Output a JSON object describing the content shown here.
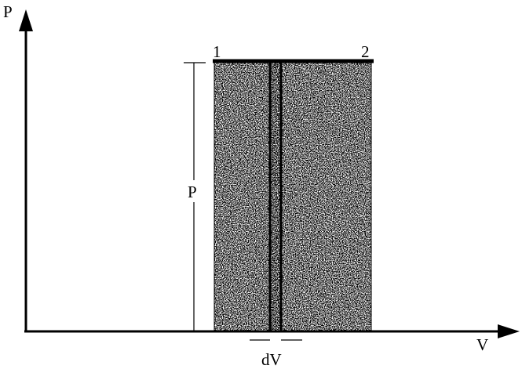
{
  "diagram": {
    "axis_y_label": "P",
    "axis_x_label": "V",
    "state_1_label": "1",
    "state_2_label": "2",
    "pressure_label": "P",
    "volume_element_label": "dV",
    "line_color": "#000000",
    "fill_color": "#000000"
  }
}
